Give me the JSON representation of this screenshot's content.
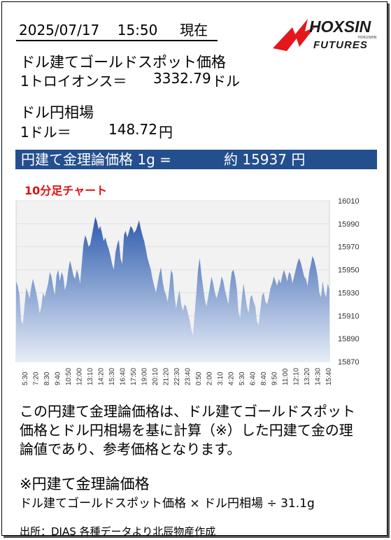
{
  "header": {
    "date": "2025/07/17",
    "time": "15:50",
    "suffix": "現在",
    "brand": "HOXSIN",
    "brand_sub": "FUTURES",
    "brand_small": "HOKUSHIN"
  },
  "gold": {
    "label": "ドル建てゴールドスポット価格",
    "unit": "1トロイオンス＝",
    "value": "3332.79",
    "currency": "ドル"
  },
  "fx": {
    "label": "ドル円相場",
    "unit": "1ドル＝",
    "value": "148.72",
    "currency": "円"
  },
  "banner": {
    "label": "円建て金理論価格 1g =",
    "value": "約 15937 円"
  },
  "chart_title": "10分足チャート",
  "chart_data": {
    "type": "area",
    "ylim": [
      15870,
      16010
    ],
    "yticks": [
      15870,
      15890,
      15910,
      15930,
      15950,
      15970,
      15990,
      16010
    ],
    "xticks": [
      "5:30",
      "7:20",
      "8:30",
      "9:40",
      "10:50",
      "12:00",
      "13:10",
      "14:20",
      "15:30",
      "16:40",
      "17:50",
      "19:00",
      "20:10",
      "21:20",
      "22:30",
      "23:40",
      "0:50",
      "2:00",
      "3:10",
      "4:20",
      "5:30",
      "6:40",
      "8:40",
      "9:50",
      "11:00",
      "12:10",
      "13:20",
      "14:30",
      "15:40"
    ],
    "values": [
      15940,
      15936,
      15928,
      15906,
      15902,
      15918,
      15934,
      15930,
      15925,
      15935,
      15942,
      15936,
      15930,
      15922,
      15912,
      15918,
      15930,
      15926,
      15932,
      15938,
      15948,
      15944,
      15935,
      15928,
      15945,
      15950,
      15940,
      15948,
      15944,
      15932,
      15938,
      15950,
      15958,
      15952,
      15945,
      15942,
      15950,
      15946,
      15938,
      15955,
      15972,
      15980,
      15976,
      15970,
      15972,
      15980,
      15988,
      15996,
      15992,
      15985,
      15988,
      15982,
      15975,
      15978,
      15972,
      15968,
      15962,
      15955,
      15950,
      15965,
      15972,
      15976,
      15960,
      15955,
      15980,
      15984,
      15978,
      15983,
      15988,
      15986,
      15982,
      15984,
      15988,
      15993,
      15986,
      15980,
      15975,
      15968,
      15960,
      15955,
      15950,
      15942,
      15936,
      15930,
      15938,
      15946,
      15952,
      15940,
      15932,
      15928,
      15922,
      15935,
      15950,
      15946,
      15928,
      15916,
      15925,
      15932,
      15920,
      15914,
      15920,
      15918,
      15912,
      15906,
      15898,
      15893,
      15912,
      15930,
      15950,
      15960,
      15946,
      15935,
      15924,
      15918,
      15926,
      15935,
      15944,
      15938,
      15930,
      15925,
      15930,
      15936,
      15944,
      15940,
      15932,
      15926,
      15920,
      15936,
      15948,
      15950,
      15944,
      15934,
      15914,
      15908,
      15926,
      15938,
      15928,
      15918,
      15912,
      15926,
      15928,
      15922,
      15918,
      15905,
      15902,
      15915,
      15928,
      15930,
      15922,
      15920,
      15926,
      15934,
      15938,
      15944,
      15940,
      15936,
      15942,
      15938,
      15945,
      15950,
      15945,
      15940,
      15948,
      15946,
      15938,
      15944,
      15950,
      15956,
      15960,
      15956,
      15950,
      15944,
      15942,
      15936,
      15948,
      15955,
      15962,
      15958,
      15952,
      15944,
      15930,
      15926,
      15940,
      15930,
      15926,
      15938,
      15932
    ]
  }
}
